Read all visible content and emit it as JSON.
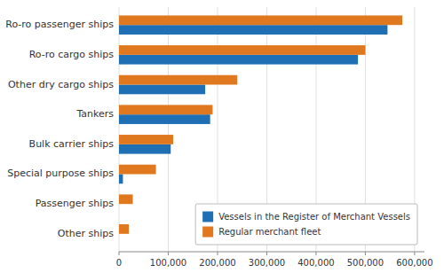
{
  "chart_data": {
    "type": "bar",
    "orientation": "horizontal",
    "categories": [
      "Other ships",
      "Passenger ships",
      "Special purpose ships",
      "Bulk carrier ships",
      "Tankers",
      "Other dry cargo ships",
      "Ro-ro cargo ships",
      "Ro-ro passenger ships"
    ],
    "series": [
      {
        "name": "Vessels in the Register of Merchant Vessels",
        "color": "#1F6FB5",
        "values": [
          0,
          0,
          8000,
          105000,
          185000,
          175000,
          485000,
          545000
        ]
      },
      {
        "name": "Regular merchant fleet",
        "color": "#E07820",
        "values": [
          20000,
          28000,
          75000,
          110000,
          190000,
          240000,
          500000,
          575000
        ]
      }
    ],
    "xlim": [
      0,
      620000
    ],
    "xticks": [
      0,
      {
        "value": 100000,
        "label": "100,000"
      },
      {
        "value": 200000,
        "label": "200,000"
      },
      {
        "value": 300000,
        "label": "300,000"
      },
      {
        "value": 400000,
        "label": "400,000"
      },
      {
        "value": 500000,
        "label": "500,000"
      },
      {
        "value": 600000,
        "label": "600,000"
      }
    ],
    "grid": true,
    "legend": "lower right"
  }
}
